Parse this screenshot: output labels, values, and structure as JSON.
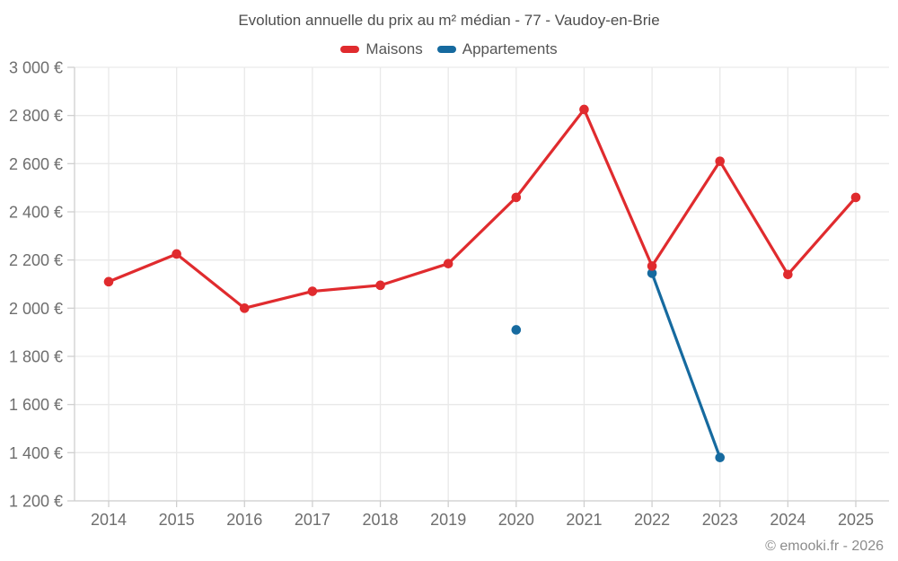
{
  "chart_data": {
    "type": "line",
    "title": "Evolution annuelle du prix au m² médian - 77 - Vaudoy-en-Brie",
    "categories": [
      "2014",
      "2015",
      "2016",
      "2017",
      "2018",
      "2019",
      "2020",
      "2021",
      "2022",
      "2023",
      "2024",
      "2025"
    ],
    "series": [
      {
        "name": "Maisons",
        "color": "#e02b2e",
        "values": [
          2110,
          2225,
          2000,
          2070,
          2095,
          2185,
          2460,
          2825,
          2175,
          2610,
          2140,
          2460
        ]
      },
      {
        "name": "Appartements",
        "color": "#166a9f",
        "values": [
          null,
          null,
          null,
          null,
          null,
          null,
          1910,
          null,
          2145,
          1380,
          null,
          null
        ]
      }
    ],
    "ylim": [
      1200,
      3000
    ],
    "ytick_step": 200,
    "yticks": [
      {
        "value": 1200,
        "label": "1 200 €"
      },
      {
        "value": 1400,
        "label": "1 400 €"
      },
      {
        "value": 1600,
        "label": "1 600 €"
      },
      {
        "value": 1800,
        "label": "1 800 €"
      },
      {
        "value": 2000,
        "label": "2 000 €"
      },
      {
        "value": 2200,
        "label": "2 200 €"
      },
      {
        "value": 2400,
        "label": "2 400 €"
      },
      {
        "value": 2600,
        "label": "2 600 €"
      },
      {
        "value": 2800,
        "label": "2 800 €"
      },
      {
        "value": 3000,
        "label": "3 000 €"
      }
    ],
    "grid": true,
    "legend_position": "top",
    "colors": {
      "grid": "#e9e9e9",
      "axis": "#cfcfcf",
      "tick_label": "#6e6e6e"
    }
  },
  "footer": {
    "copyright": "© emooki.fr - 2026"
  }
}
